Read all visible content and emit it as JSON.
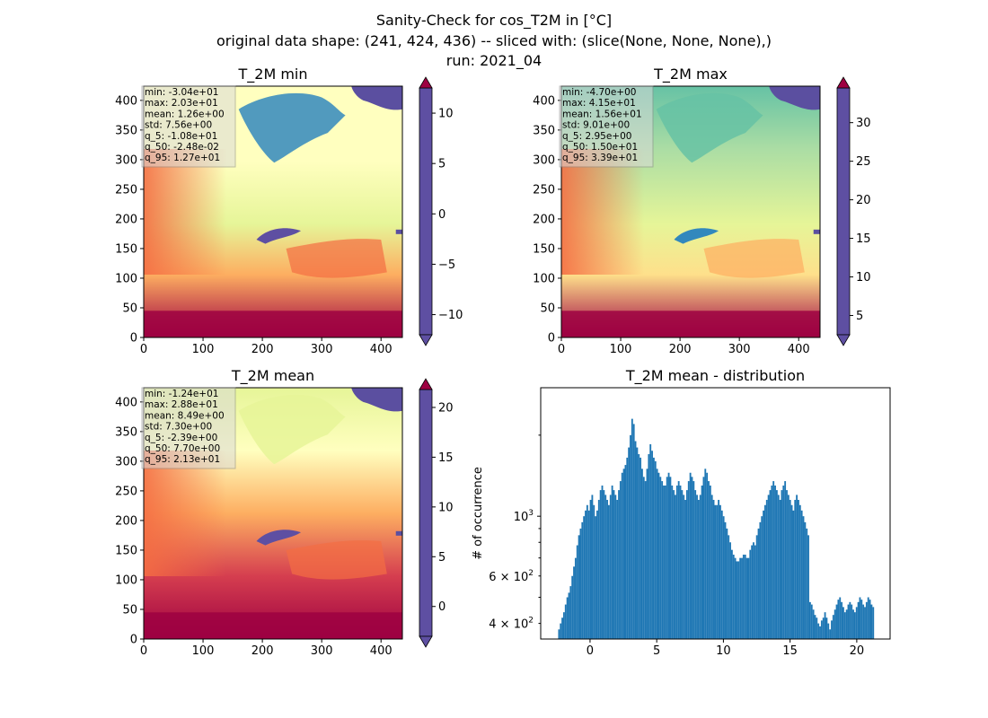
{
  "suptitle": {
    "line1": "Sanity-Check for cos_T2M in [°C]",
    "line2": "original data shape: (241, 424, 436) -- sliced with: (slice(None, None, None),)",
    "line3": "run: 2021_04"
  },
  "colors": {
    "spectral_r": [
      "#5e4fa2",
      "#3288bd",
      "#66c2a5",
      "#abdda4",
      "#e6f598",
      "#ffffbf",
      "#fee08b",
      "#fdae61",
      "#f46d43",
      "#d53e4f",
      "#9e0142"
    ],
    "hist_bar": "#1f77b4",
    "stats_box_bg": "#d9d9d9",
    "nan_fill": "#5b4fa0"
  },
  "chart_data": [
    {
      "type": "heatmap",
      "title": "T_2M min",
      "x_ticks": [
        0,
        100,
        200,
        300,
        400
      ],
      "y_ticks": [
        0,
        50,
        100,
        150,
        200,
        250,
        300,
        350,
        400
      ],
      "xlim": [
        0,
        436
      ],
      "ylim": [
        0,
        424
      ],
      "colorbar": {
        "range": [
          -12.0,
          12.5
        ],
        "ticks": [
          -10,
          -5,
          0,
          5,
          10
        ],
        "extend": "both"
      },
      "stats": [
        "min: -3.04e+01",
        "max: 2.03e+01",
        "mean: 1.26e+00",
        "std: 7.56e+00",
        "q_5: -1.08e+01",
        "q_50: -2.48e-02",
        "q_95: 1.27e+01"
      ]
    },
    {
      "type": "heatmap",
      "title": "T_2M max",
      "x_ticks": [
        0,
        100,
        200,
        300,
        400
      ],
      "y_ticks": [
        0,
        50,
        100,
        150,
        200,
        250,
        300,
        350,
        400
      ],
      "xlim": [
        0,
        436
      ],
      "ylim": [
        0,
        424
      ],
      "colorbar": {
        "range": [
          2.5,
          34.5
        ],
        "ticks": [
          5,
          10,
          15,
          20,
          25,
          30
        ],
        "extend": "both"
      },
      "stats": [
        "min: -4.70e+00",
        "max: 4.15e+01",
        "mean: 1.56e+01",
        "std: 9.01e+00",
        "q_5: 2.95e+00",
        "q_50: 1.50e+01",
        "q_95: 3.39e+01"
      ]
    },
    {
      "type": "heatmap",
      "title": "T_2M mean",
      "x_ticks": [
        0,
        100,
        200,
        300,
        400
      ],
      "y_ticks": [
        0,
        50,
        100,
        150,
        200,
        250,
        300,
        350,
        400
      ],
      "xlim": [
        0,
        436
      ],
      "ylim": [
        0,
        424
      ],
      "colorbar": {
        "range": [
          -3.0,
          21.8
        ],
        "ticks": [
          0,
          5,
          10,
          15,
          20
        ],
        "extend": "both"
      },
      "stats": [
        "min: -1.24e+01",
        "max: 2.88e+01",
        "mean: 8.49e+00",
        "std: 7.30e+00",
        "q_5: -2.39e+00",
        "q_50: 7.70e+00",
        "q_95: 2.13e+01"
      ]
    },
    {
      "type": "bar",
      "title": "T_2M mean - distribution",
      "ylabel": "# of occurrence",
      "y_scale": "log",
      "xlim": [
        -3.7,
        22.5
      ],
      "ylim": [
        350,
        3000
      ],
      "x_ticks": [
        0,
        5,
        10,
        15,
        20
      ],
      "y_major_ticks": [
        {
          "value": 1000,
          "label": "10",
          "exp": "3"
        }
      ],
      "y_minor_ticks": [
        {
          "value": 400,
          "label": "4 × 10",
          "exp": "2"
        },
        {
          "value": 600,
          "label": "6 × 10",
          "exp": "2"
        },
        500,
        700,
        800,
        900,
        2000
      ],
      "bin_range": [
        -2.39,
        21.3
      ],
      "bin_counts": [
        380,
        400,
        420,
        440,
        470,
        500,
        520,
        550,
        600,
        650,
        700,
        780,
        850,
        900,
        950,
        1000,
        1050,
        1100,
        1050,
        1150,
        1200,
        1100,
        1000,
        1050,
        1150,
        1250,
        1300,
        1250,
        1200,
        1150,
        1100,
        1200,
        1300,
        1250,
        1200,
        1150,
        1250,
        1350,
        1450,
        1500,
        1550,
        1650,
        1800,
        2000,
        2300,
        2200,
        1900,
        1800,
        1700,
        1650,
        1500,
        1400,
        1350,
        1500,
        1700,
        1850,
        1750,
        1650,
        1600,
        1500,
        1450,
        1400,
        1350,
        1300,
        1300,
        1400,
        1450,
        1400,
        1300,
        1250,
        1200,
        1300,
        1350,
        1300,
        1250,
        1200,
        1150,
        1250,
        1350,
        1450,
        1400,
        1350,
        1250,
        1200,
        1150,
        1200,
        1300,
        1400,
        1500,
        1450,
        1350,
        1300,
        1200,
        1150,
        1100,
        1100,
        1150,
        1100,
        1050,
        1000,
        950,
        900,
        850,
        800,
        750,
        720,
        700,
        680,
        680,
        700,
        700,
        720,
        720,
        700,
        700,
        750,
        780,
        800,
        780,
        850,
        900,
        950,
        1000,
        1050,
        1100,
        1150,
        1200,
        1250,
        1300,
        1350,
        1300,
        1250,
        1200,
        1150,
        1250,
        1300,
        1350,
        1250,
        1200,
        1150,
        1100,
        1050,
        1150,
        1200,
        1150,
        1100,
        1050,
        1000,
        950,
        900,
        850,
        480,
        470,
        450,
        430,
        420,
        400,
        390,
        410,
        420,
        440,
        420,
        400,
        380,
        410,
        430,
        450,
        470,
        490,
        500,
        480,
        460,
        440,
        450,
        470,
        480,
        470,
        450,
        440,
        460,
        480,
        500,
        490,
        470,
        460,
        480,
        500,
        490,
        470,
        460
      ]
    }
  ]
}
